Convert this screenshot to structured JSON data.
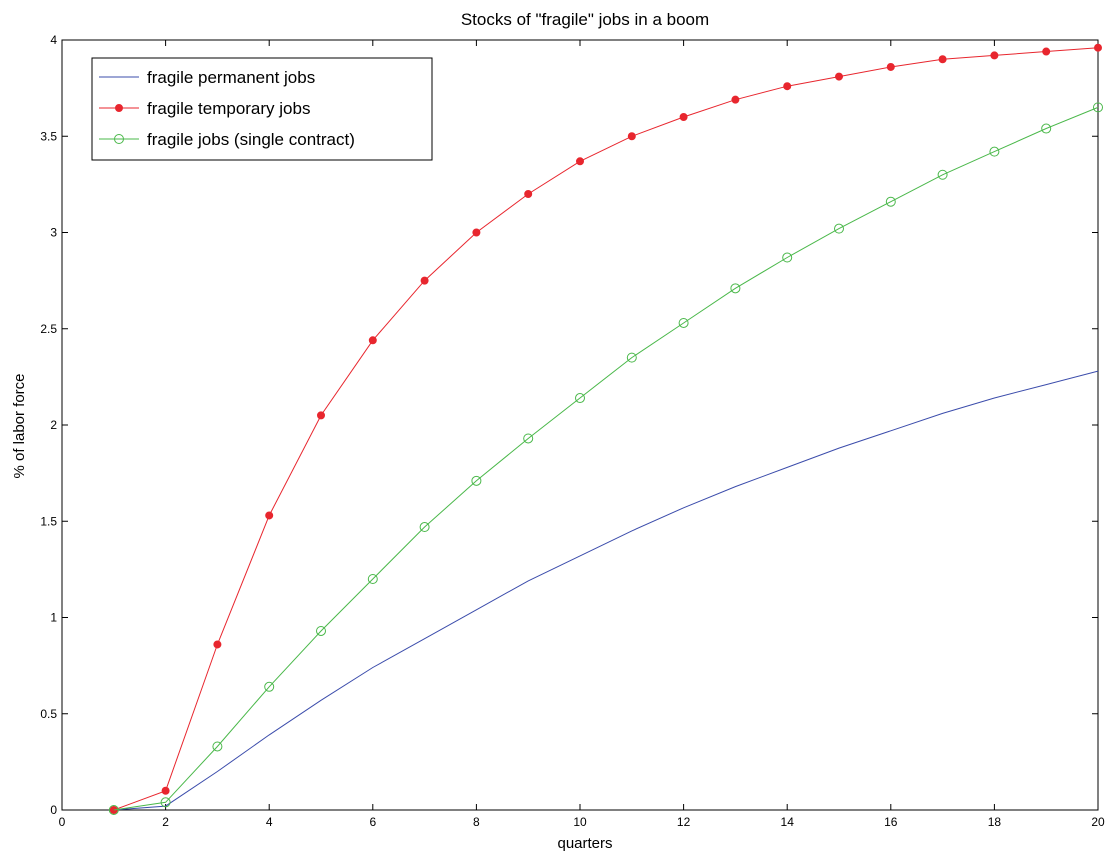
{
  "chart_data": {
    "type": "line",
    "title": "Stocks of \"fragile\" jobs in a boom",
    "xlabel": "quarters",
    "ylabel": "% of labor force",
    "xlim": [
      0,
      20
    ],
    "ylim": [
      0,
      4
    ],
    "xticks": [
      0,
      2,
      4,
      6,
      8,
      10,
      12,
      14,
      16,
      18,
      20
    ],
    "yticks": [
      0,
      0.5,
      1,
      1.5,
      2,
      2.5,
      3,
      3.5,
      4
    ],
    "grid": false,
    "legend_position": "top-left",
    "x": [
      1,
      2,
      3,
      4,
      5,
      6,
      7,
      8,
      9,
      10,
      11,
      12,
      13,
      14,
      15,
      16,
      17,
      18,
      19,
      20
    ],
    "series": [
      {
        "name": "fragile permanent jobs",
        "color": "#3b4cab",
        "marker": "none",
        "values": [
          0,
          0.02,
          0.2,
          0.39,
          0.57,
          0.74,
          0.89,
          1.04,
          1.19,
          1.32,
          1.45,
          1.57,
          1.68,
          1.78,
          1.88,
          1.97,
          2.06,
          2.14,
          2.21,
          2.28
        ]
      },
      {
        "name": "fragile temporary jobs",
        "color": "#e8262e",
        "marker": "filled-circle",
        "values": [
          0,
          0.1,
          0.86,
          1.53,
          2.05,
          2.44,
          2.75,
          3.0,
          3.2,
          3.37,
          3.5,
          3.6,
          3.69,
          3.76,
          3.81,
          3.86,
          3.9,
          3.92,
          3.94,
          3.96
        ]
      },
      {
        "name": "fragile jobs (single contract)",
        "color": "#4ab84a",
        "marker": "open-circle",
        "values": [
          0,
          0.04,
          0.33,
          0.64,
          0.93,
          1.2,
          1.47,
          1.71,
          1.93,
          2.14,
          2.35,
          2.53,
          2.71,
          2.87,
          3.02,
          3.16,
          3.3,
          3.42,
          3.54,
          3.65
        ]
      }
    ]
  }
}
